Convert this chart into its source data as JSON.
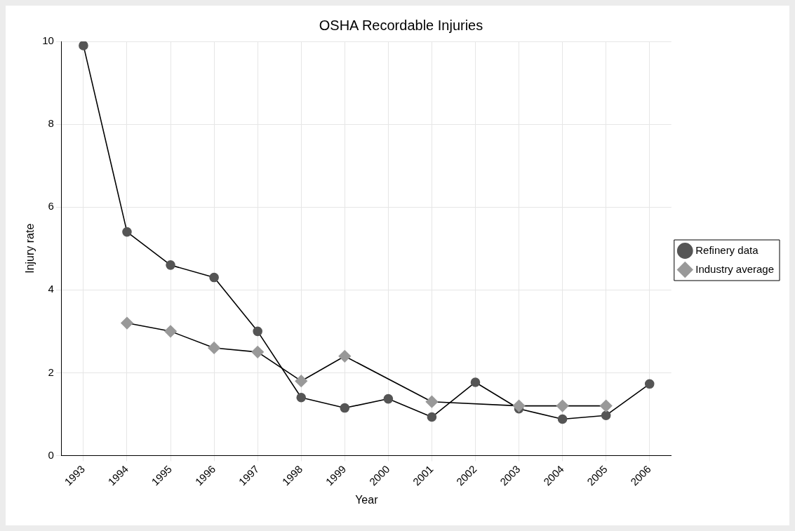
{
  "chart_data": {
    "type": "line",
    "title": "OSHA Recordable Injuries",
    "xlabel": "Year",
    "ylabel": "Injury rate",
    "categories": [
      "1993",
      "1994",
      "1995",
      "1996",
      "1997",
      "1998",
      "1999",
      "2000",
      "2001",
      "2002",
      "2003",
      "2004",
      "2005",
      "2006"
    ],
    "series": [
      {
        "name": "Refinery data",
        "color": "#555555",
        "marker": "circle",
        "values": [
          9.9,
          5.4,
          4.6,
          4.3,
          3.0,
          1.4,
          1.15,
          1.37,
          0.93,
          1.77,
          1.13,
          0.88,
          0.97,
          1.73
        ]
      },
      {
        "name": "Industry average",
        "color": "#999999",
        "marker": "diamond",
        "values": [
          null,
          3.2,
          3.0,
          2.6,
          2.5,
          1.8,
          2.4,
          null,
          1.3,
          null,
          1.2,
          1.2,
          1.2,
          null
        ]
      }
    ],
    "ylim": [
      0,
      10
    ],
    "yticks": [
      0,
      2,
      4,
      6,
      8,
      10
    ],
    "grid": true,
    "legend": "right",
    "line_style": "solid"
  }
}
